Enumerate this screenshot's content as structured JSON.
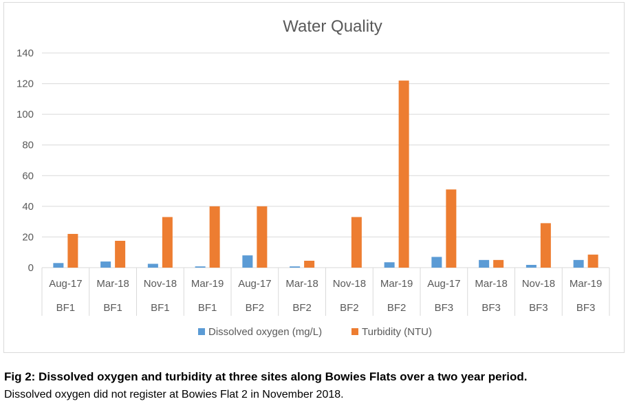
{
  "chart_data": {
    "type": "bar",
    "title": "Water Quality",
    "xlabel": "",
    "ylabel": "",
    "ylim": [
      0,
      140
    ],
    "yticks": [
      0,
      20,
      40,
      60,
      80,
      100,
      120,
      140
    ],
    "grid": true,
    "legend_position": "bottom",
    "categories": [
      {
        "date": "Aug-17",
        "site": "BF1"
      },
      {
        "date": "Mar-18",
        "site": "BF1"
      },
      {
        "date": "Nov-18",
        "site": "BF1"
      },
      {
        "date": "Mar-19",
        "site": "BF1"
      },
      {
        "date": "Aug-17",
        "site": "BF2"
      },
      {
        "date": "Mar-18",
        "site": "BF2"
      },
      {
        "date": "Nov-18",
        "site": "BF2"
      },
      {
        "date": "Mar-19",
        "site": "BF2"
      },
      {
        "date": "Aug-17",
        "site": "BF3"
      },
      {
        "date": "Mar-18",
        "site": "BF3"
      },
      {
        "date": "Nov-18",
        "site": "BF3"
      },
      {
        "date": "Mar-19",
        "site": "BF3"
      }
    ],
    "series": [
      {
        "name": "Dissolved oxygen (mg/L)",
        "color": "#5b9bd5",
        "values": [
          3,
          4,
          2.5,
          0.8,
          8,
          0.8,
          0,
          3.5,
          7,
          5,
          1.8,
          5
        ]
      },
      {
        "name": "Turbidity (NTU)",
        "color": "#ed7d31",
        "values": [
          22,
          17.5,
          33,
          40,
          40,
          4.5,
          33,
          122,
          51,
          5,
          29,
          8.5
        ]
      }
    ]
  },
  "caption": {
    "title": "Fig 2: Dissolved oxygen and turbidity at three sites along Bowies Flats over a two year period.",
    "note": "Dissolved oxygen did not register at Bowies Flat 2 in November 2018."
  }
}
